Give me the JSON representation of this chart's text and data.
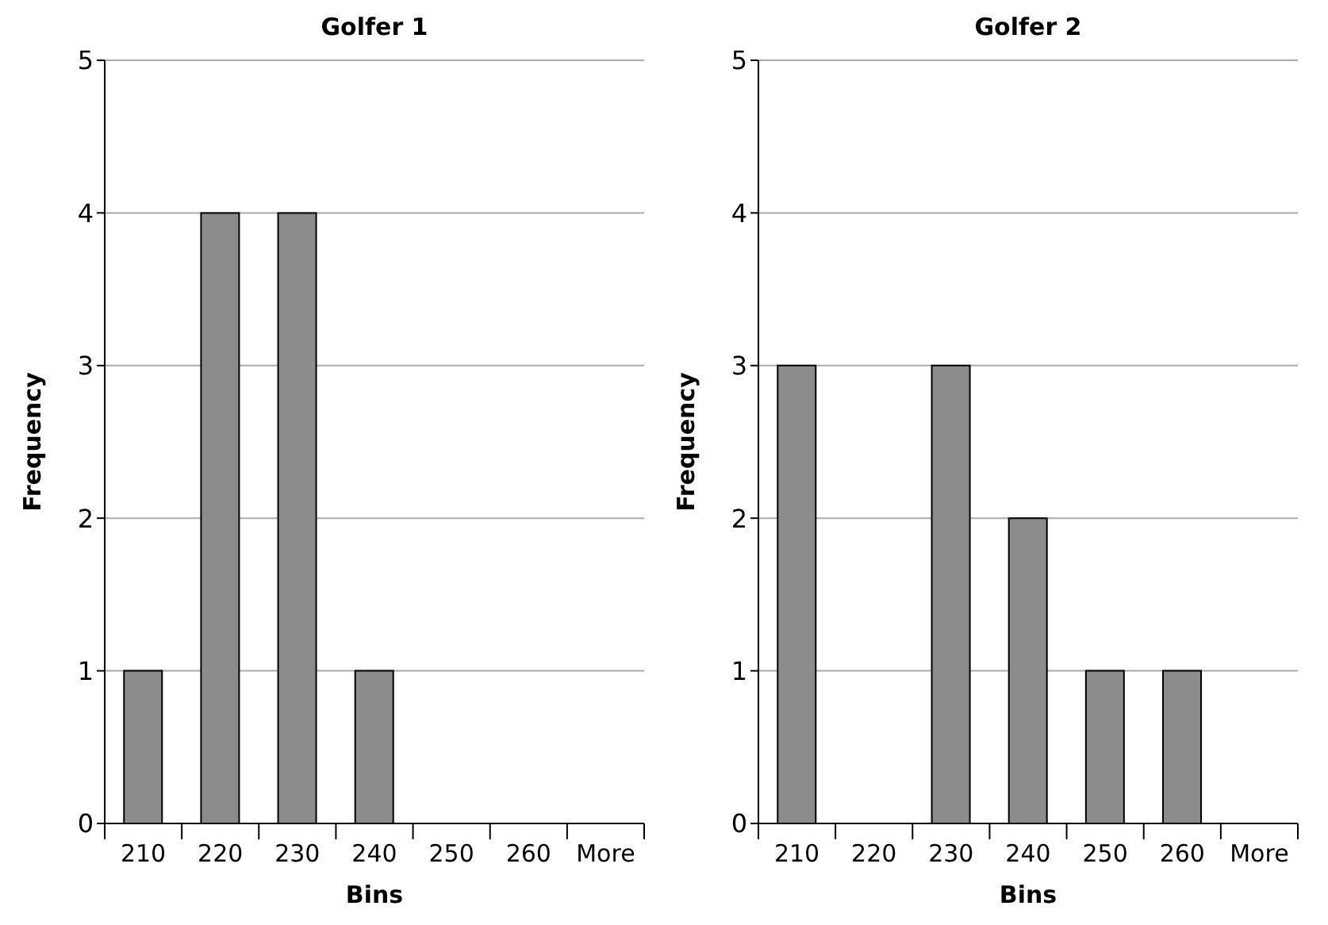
{
  "chart_data": [
    {
      "type": "bar",
      "title": "Golfer 1",
      "xlabel": "Bins",
      "ylabel": "Frequency",
      "categories": [
        "210",
        "220",
        "230",
        "240",
        "250",
        "260",
        "More"
      ],
      "values": [
        1,
        4,
        4,
        1,
        0,
        0,
        0
      ],
      "color": "#8c8c8c",
      "ylim": [
        0,
        5
      ],
      "yticks": [
        0,
        1,
        2,
        3,
        4,
        5
      ],
      "grid": "y"
    },
    {
      "type": "bar",
      "title": "Golfer 2",
      "xlabel": "Bins",
      "ylabel": "Frequency",
      "categories": [
        "210",
        "220",
        "230",
        "240",
        "250",
        "260",
        "More"
      ],
      "values": [
        3,
        0,
        3,
        2,
        1,
        1,
        0
      ],
      "color": "#8c8c8c",
      "ylim": [
        0,
        5
      ],
      "yticks": [
        0,
        1,
        2,
        3,
        4,
        5
      ],
      "grid": "y"
    }
  ]
}
